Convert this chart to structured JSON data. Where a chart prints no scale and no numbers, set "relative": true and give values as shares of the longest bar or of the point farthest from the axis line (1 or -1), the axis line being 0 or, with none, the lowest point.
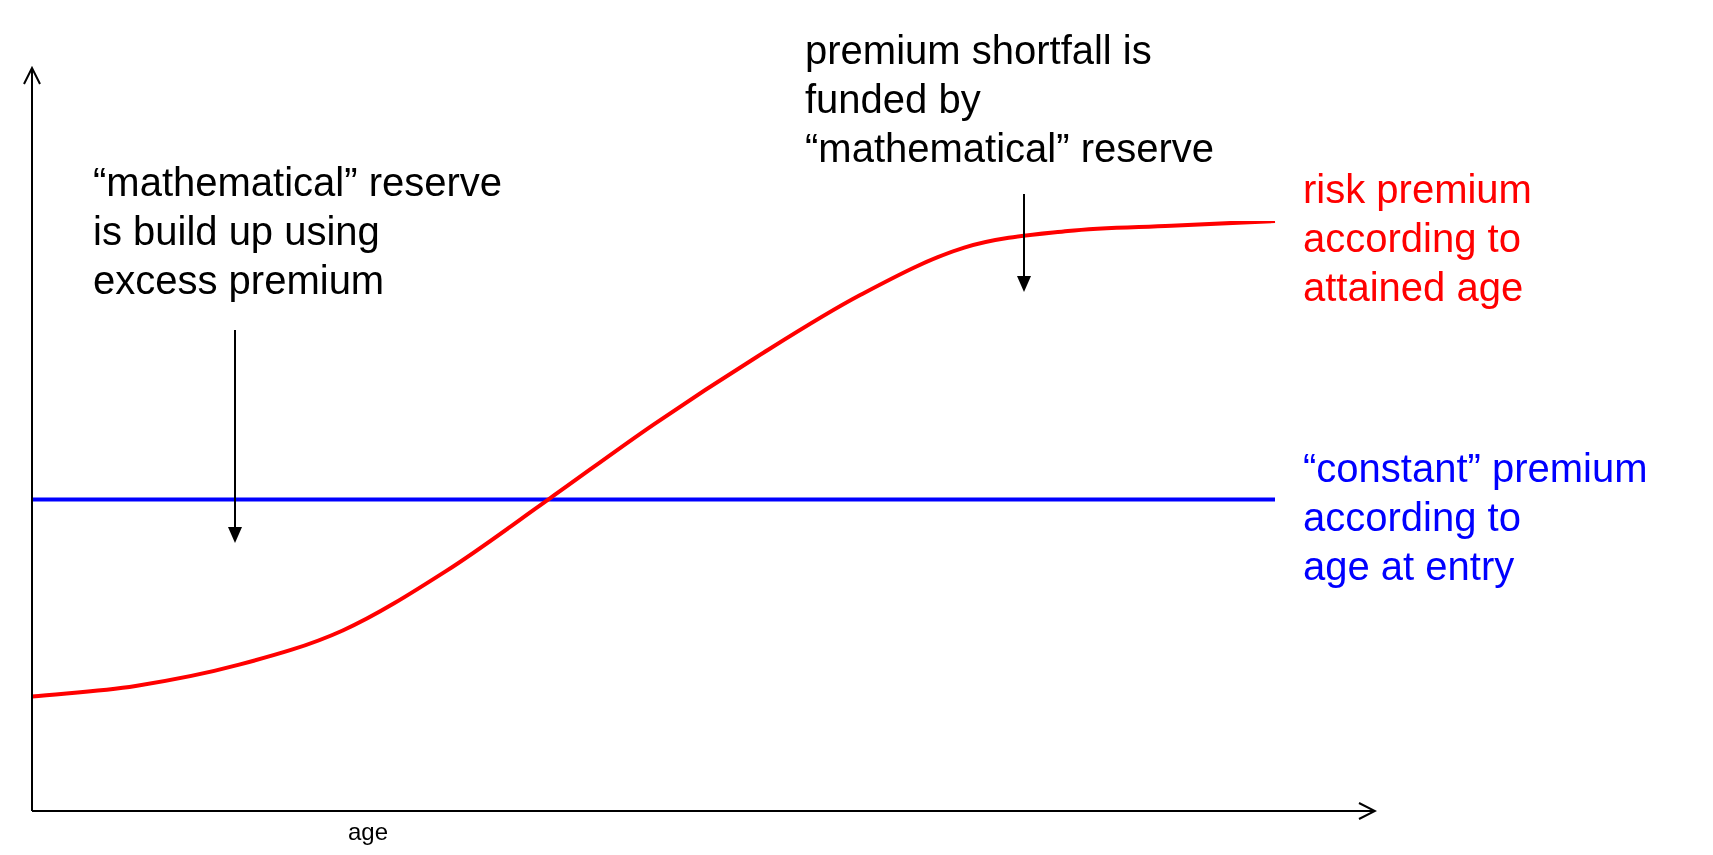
{
  "chart_data": {
    "type": "line",
    "relative": true,
    "xlabel": "age",
    "categories": [
      null,
      null,
      null,
      null,
      null,
      null,
      null,
      null,
      null,
      null,
      null,
      null,
      null
    ],
    "series": [
      {
        "name": "risk premium\naccording to\nattained age",
        "color": "#ff0000",
        "values": [
          0.194,
          0.212,
          0.248,
          0.306,
          0.407,
          0.53,
          0.655,
          0.77,
          0.875,
          0.955,
          0.983,
          0.992,
          1
        ]
      },
      {
        "name": "“constant” premium\naccording to\nage at entry",
        "color": "#0000ff",
        "values": [
          0.528,
          0.528,
          0.528,
          0.528,
          0.528,
          0.528,
          0.528,
          0.528,
          0.528,
          0.528,
          0.528,
          0.528,
          0.528
        ]
      }
    ],
    "annotations": [
      "“mathematical” reserve\nis build up using\nexcess premium",
      "premium shortfall is\nfunded by\n“mathematical” reserve"
    ],
    "legend": false,
    "marker": "none",
    "line_style": "solid"
  }
}
